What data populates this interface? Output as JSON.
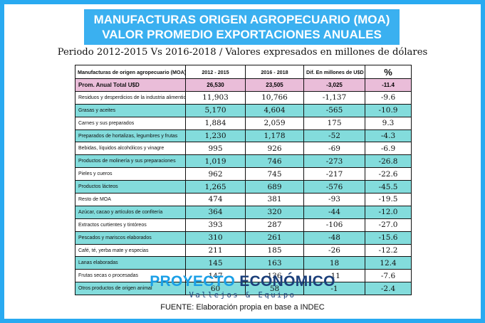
{
  "header": {
    "title_line1": "MANUFACTURAS ORIGEN AGROPECUARIO (MOA)",
    "title_line2": "VALOR PROMEDIO EXPORTACIONES ANUALES",
    "subtitle": "Periodo 2012-2015 Vs 2016-2018 / Valores expresados en millones de dólares"
  },
  "table": {
    "columns": [
      "Manufacturas de origen agropecuario (MOA)",
      "2012 - 2015",
      "2016 - 2018",
      "Dif. En millones de U$D",
      "%"
    ],
    "total": {
      "label": "Prom. Anual Total U$D",
      "v1": "26,530",
      "v2": "23,505",
      "diff": "-3,025",
      "pct": "-11.4"
    },
    "rows": [
      {
        "label": "Residuos y desperdicios de la industria alimenticia",
        "v1": "11,903",
        "v2": "10,766",
        "diff": "-1,137",
        "pct": "-9.6"
      },
      {
        "label": "Grasas y aceites",
        "v1": "5,170",
        "v2": "4,604",
        "diff": "-565",
        "pct": "-10.9"
      },
      {
        "label": "Carnes y sus preparados",
        "v1": "1,884",
        "v2": "2,059",
        "diff": "175",
        "pct": "9.3"
      },
      {
        "label": "Preparados de hortalizas, legumbres y frutas",
        "v1": "1,230",
        "v2": "1,178",
        "diff": "-52",
        "pct": "-4.3"
      },
      {
        "label": "Bebidas, líquidos alcohólicos y vinagre",
        "v1": "995",
        "v2": "926",
        "diff": "-69",
        "pct": "-6.9"
      },
      {
        "label": "Productos de molinería y sus preparaciones",
        "v1": "1,019",
        "v2": "746",
        "diff": "-273",
        "pct": "-26.8"
      },
      {
        "label": "Pieles y cueros",
        "v1": "962",
        "v2": "745",
        "diff": "-217",
        "pct": "-22.6"
      },
      {
        "label": "Productos lácteos",
        "v1": "1,265",
        "v2": "689",
        "diff": "-576",
        "pct": "-45.5"
      },
      {
        "label": "Resto de MOA",
        "v1": "474",
        "v2": "381",
        "diff": "-93",
        "pct": "-19.5"
      },
      {
        "label": "Azúcar, cacao y artículos de confitería",
        "v1": "364",
        "v2": "320",
        "diff": "-44",
        "pct": "-12.0"
      },
      {
        "label": "Extractos curtientes y tintóreos",
        "v1": "393",
        "v2": "287",
        "diff": "-106",
        "pct": "-27.0"
      },
      {
        "label": "Pescados y mariscos elaborados",
        "v1": "310",
        "v2": "261",
        "diff": "-48",
        "pct": "-15.6"
      },
      {
        "label": "Café, té, yerba mate y especias",
        "v1": "211",
        "v2": "185",
        "diff": "-26",
        "pct": "-12.2"
      },
      {
        "label": "Lanas elaboradas",
        "v1": "145",
        "v2": "163",
        "diff": "18",
        "pct": "12.4"
      },
      {
        "label": "Frutas secas o procesadas",
        "v1": "147",
        "v2": "136",
        "diff": "-11",
        "pct": "-7.6"
      },
      {
        "label": "Otros productos de origen animal",
        "v1": "60",
        "v2": "58",
        "diff": "-1",
        "pct": "-2.4"
      }
    ]
  },
  "logo": {
    "word1": "PROYECTO",
    "word2": "ECONÓMICO",
    "tagline": "Vallejos & Equipo"
  },
  "footer": {
    "source": "FUENTE: Elaboración propia en base a INDEC"
  },
  "colors": {
    "frame_blue": "#29aaf1",
    "title_blue": "#3ab0f0",
    "row_teal": "#83dcdc",
    "total_pink": "#eabdd9",
    "logo_light_blue": "#1a9fe6",
    "logo_dark_blue": "#1b3f7a"
  }
}
